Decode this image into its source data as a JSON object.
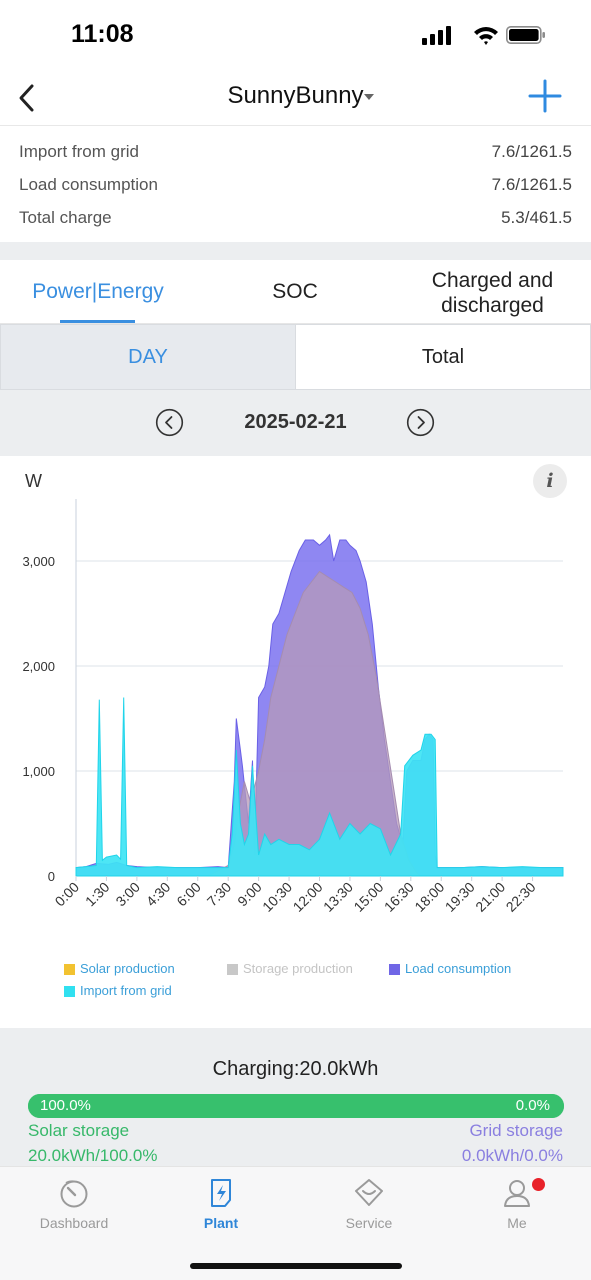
{
  "status_bar": {
    "time": "11:08"
  },
  "header": {
    "title": "SunnyBunny"
  },
  "stats": [
    {
      "label": "Import from grid",
      "value": "7.6/1261.5"
    },
    {
      "label": "Load consumption",
      "value": "7.6/1261.5"
    },
    {
      "label": "Total charge",
      "value": "5.3/461.5"
    }
  ],
  "tabs": [
    {
      "label": "Power|Energy",
      "active": true
    },
    {
      "label": "SOC",
      "active": false
    },
    {
      "label": "Charged and discharged",
      "active": false
    }
  ],
  "segments": {
    "day": "DAY",
    "total": "Total"
  },
  "date": "2025-02-21",
  "chart_data": {
    "type": "area",
    "ylabel": "W",
    "ylim": [
      0,
      3400
    ],
    "yticks": [
      0,
      1000,
      2000,
      3000
    ],
    "ytick_labels": [
      "0",
      "1,000",
      "2,000",
      "3,000"
    ],
    "xticks": [
      "0:00",
      "1:30",
      "3:00",
      "4:30",
      "6:00",
      "7:30",
      "9:00",
      "10:30",
      "12:00",
      "13:30",
      "15:00",
      "16:30",
      "18:00",
      "19:30",
      "21:00",
      "22:30"
    ],
    "x_unit": "hours",
    "xlim": [
      0,
      24
    ],
    "grid": true,
    "legend_position": "bottom",
    "series": [
      {
        "name": "Load consumption",
        "color": "#7a6ff0",
        "points": [
          [
            0,
            80
          ],
          [
            0.5,
            90
          ],
          [
            1,
            120
          ],
          [
            1.6,
            110
          ],
          [
            2,
            130
          ],
          [
            2.5,
            100
          ],
          [
            3,
            90
          ],
          [
            4,
            80
          ],
          [
            5,
            80
          ],
          [
            6,
            80
          ],
          [
            7,
            90
          ],
          [
            7.5,
            80
          ],
          [
            7.8,
            900
          ],
          [
            7.9,
            1500
          ],
          [
            8.1,
            1200
          ],
          [
            8.2,
            1050
          ],
          [
            8.5,
            500
          ],
          [
            8.7,
            1100
          ],
          [
            8.8,
            200
          ],
          [
            9.0,
            1700
          ],
          [
            9.3,
            1800
          ],
          [
            9.5,
            2000
          ],
          [
            9.7,
            2400
          ],
          [
            10,
            2500
          ],
          [
            10.3,
            2700
          ],
          [
            10.6,
            2900
          ],
          [
            11,
            3100
          ],
          [
            11.3,
            3200
          ],
          [
            11.7,
            3200
          ],
          [
            12,
            3150
          ],
          [
            12.3,
            3200
          ],
          [
            12.5,
            3250
          ],
          [
            12.7,
            3000
          ],
          [
            13,
            3200
          ],
          [
            13.3,
            3200
          ],
          [
            13.5,
            3150
          ],
          [
            13.8,
            3100
          ],
          [
            14,
            3000
          ],
          [
            14.3,
            2800
          ],
          [
            14.6,
            2400
          ],
          [
            14.9,
            1800
          ],
          [
            15.2,
            1300
          ],
          [
            15.5,
            900
          ],
          [
            15.8,
            500
          ],
          [
            16.1,
            300
          ],
          [
            16.3,
            1000
          ],
          [
            16.6,
            1100
          ],
          [
            17.0,
            1100
          ],
          [
            17.2,
            1300
          ],
          [
            17.4,
            1350
          ],
          [
            17.6,
            1300
          ],
          [
            17.7,
            200
          ],
          [
            17.8,
            80
          ],
          [
            18,
            80
          ],
          [
            19,
            80
          ],
          [
            20,
            90
          ],
          [
            21,
            80
          ],
          [
            22,
            80
          ],
          [
            23,
            80
          ],
          [
            24,
            80
          ]
        ]
      },
      {
        "name": "Solar production",
        "color": "#a592c8",
        "points": [
          [
            0,
            0
          ],
          [
            6.5,
            0
          ],
          [
            7,
            50
          ],
          [
            7.5,
            100
          ],
          [
            7.8,
            300
          ],
          [
            8,
            600
          ],
          [
            8.3,
            900
          ],
          [
            8.6,
            700
          ],
          [
            9,
            1000
          ],
          [
            9.3,
            1300
          ],
          [
            9.6,
            1700
          ],
          [
            10,
            2000
          ],
          [
            10.4,
            2300
          ],
          [
            10.8,
            2500
          ],
          [
            11.2,
            2700
          ],
          [
            11.6,
            2800
          ],
          [
            12,
            2900
          ],
          [
            12.4,
            2850
          ],
          [
            12.8,
            2800
          ],
          [
            13.2,
            2750
          ],
          [
            13.6,
            2700
          ],
          [
            14,
            2550
          ],
          [
            14.4,
            2300
          ],
          [
            14.8,
            1900
          ],
          [
            15.2,
            1400
          ],
          [
            15.6,
            900
          ],
          [
            16,
            400
          ],
          [
            16.4,
            150
          ],
          [
            16.8,
            30
          ],
          [
            17,
            0
          ],
          [
            24,
            0
          ]
        ]
      },
      {
        "name": "Import from grid",
        "color": "#3de3f3",
        "points": [
          [
            0,
            80
          ],
          [
            0.5,
            90
          ],
          [
            1.0,
            100
          ],
          [
            1.15,
            1680
          ],
          [
            1.3,
            150
          ],
          [
            1.5,
            180
          ],
          [
            2.0,
            200
          ],
          [
            2.2,
            160
          ],
          [
            2.35,
            1700
          ],
          [
            2.5,
            100
          ],
          [
            3,
            80
          ],
          [
            4,
            90
          ],
          [
            5,
            80
          ],
          [
            6,
            80
          ],
          [
            7,
            80
          ],
          [
            7.5,
            80
          ],
          [
            7.7,
            400
          ],
          [
            7.9,
            1200
          ],
          [
            8.1,
            500
          ],
          [
            8.3,
            300
          ],
          [
            8.5,
            400
          ],
          [
            8.7,
            1050
          ],
          [
            9.0,
            200
          ],
          [
            9.3,
            400
          ],
          [
            9.6,
            300
          ],
          [
            10,
            350
          ],
          [
            10.5,
            300
          ],
          [
            11,
            300
          ],
          [
            11.5,
            250
          ],
          [
            12,
            350
          ],
          [
            12.5,
            600
          ],
          [
            13,
            350
          ],
          [
            13.5,
            500
          ],
          [
            14,
            400
          ],
          [
            14.5,
            500
          ],
          [
            15,
            450
          ],
          [
            15.5,
            200
          ],
          [
            16,
            400
          ],
          [
            16.2,
            1050
          ],
          [
            16.6,
            1150
          ],
          [
            17.0,
            1200
          ],
          [
            17.2,
            1350
          ],
          [
            17.5,
            1350
          ],
          [
            17.7,
            1300
          ],
          [
            17.8,
            80
          ],
          [
            18,
            80
          ],
          [
            19,
            80
          ],
          [
            20,
            90
          ],
          [
            21,
            80
          ],
          [
            22,
            90
          ],
          [
            23,
            80
          ],
          [
            24,
            80
          ]
        ]
      },
      {
        "name": "Storage production",
        "color": "#cccccc",
        "points": []
      }
    ],
    "legend": [
      {
        "label": "Solar production",
        "color": "#f2c230"
      },
      {
        "label": "Storage production",
        "color": "#c8c8c8"
      },
      {
        "label": "Load consumption",
        "color": "#7066e6"
      },
      {
        "label": "Import from grid",
        "color": "#30e0f0"
      }
    ]
  },
  "charging": {
    "title": "Charging:20.0kWh",
    "bar_fraction": 1.0,
    "left_pct": "100.0%",
    "right_pct": "0.0%",
    "left_label": "Solar storage",
    "left_value": "20.0kWh/100.0%",
    "right_label": "Grid storage",
    "right_value": "0.0kWh/0.0%"
  },
  "tabbar": [
    {
      "label": "Dashboard",
      "icon": "dashboard-icon",
      "active": false
    },
    {
      "label": "Plant",
      "icon": "plant-icon",
      "active": true
    },
    {
      "label": "Service",
      "icon": "service-icon",
      "active": false
    },
    {
      "label": "Me",
      "icon": "user-icon",
      "active": false,
      "badge": true
    }
  ],
  "colors": {
    "accent": "#3a8fe0",
    "green": "#37c06d",
    "purple": "#8a7fe0",
    "badge": "#e8222a"
  }
}
